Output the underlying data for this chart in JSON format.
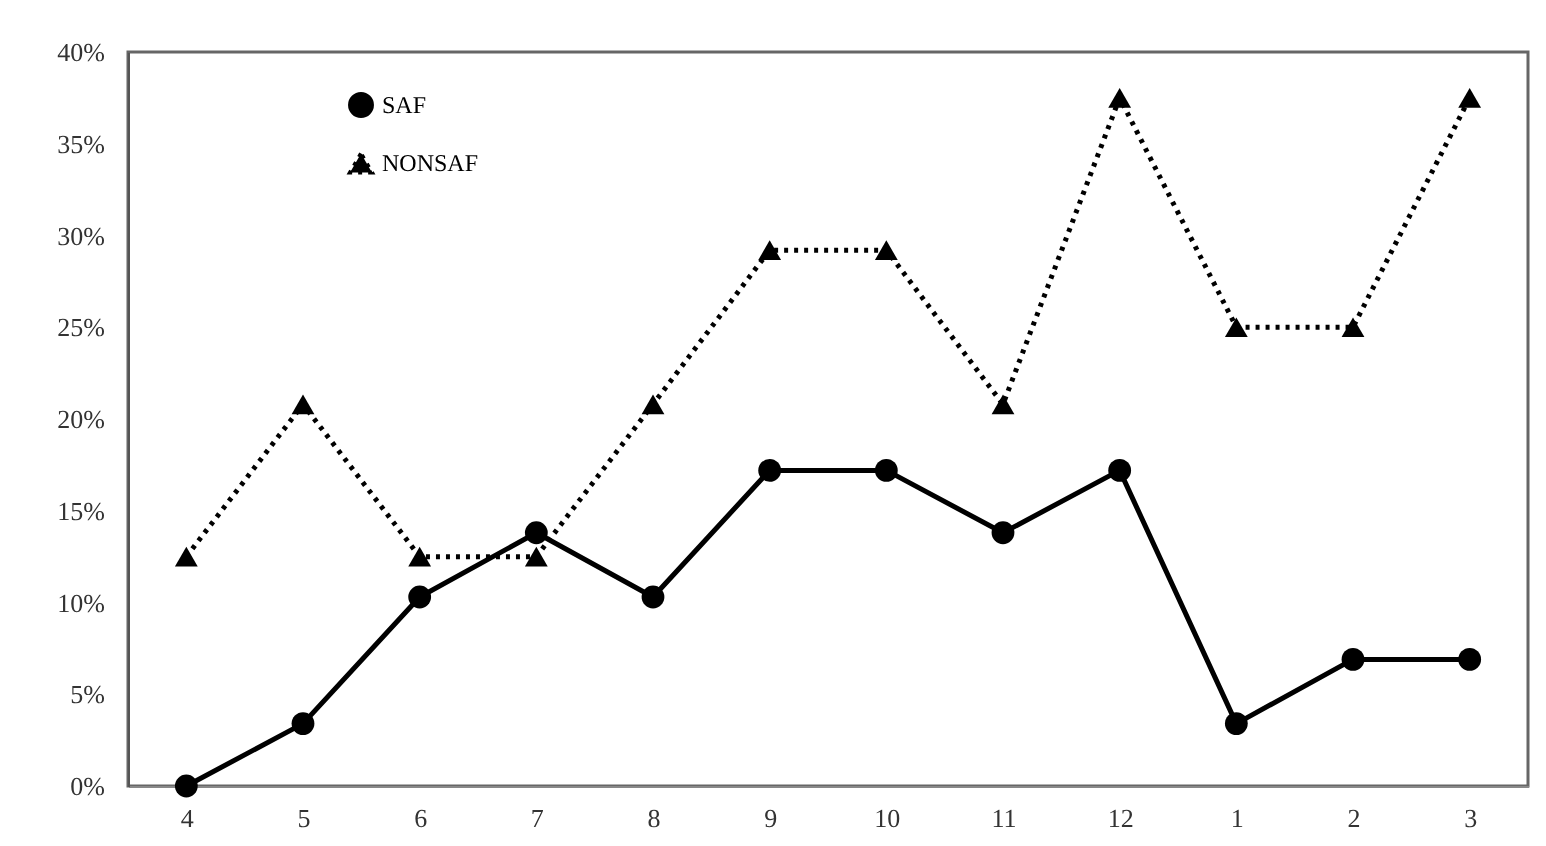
{
  "chart_data": {
    "type": "line",
    "categories": [
      "4",
      "5",
      "6",
      "7",
      "8",
      "9",
      "10",
      "11",
      "12",
      "1",
      "2",
      "3"
    ],
    "series": [
      {
        "name": "SAF",
        "color": "#000000",
        "marker": "circle",
        "line_style": "solid",
        "values": [
          0,
          3.4,
          10.3,
          13.8,
          10.3,
          17.2,
          17.2,
          13.8,
          17.2,
          3.4,
          6.9,
          6.9
        ]
      },
      {
        "name": "NONSAF",
        "color": "#000000",
        "marker": "triangle",
        "line_style": "dotted",
        "values": [
          12.5,
          20.8,
          12.5,
          12.5,
          20.8,
          29.2,
          29.2,
          20.8,
          37.5,
          25,
          25,
          37.5
        ]
      }
    ],
    "ylim": [
      0,
      40
    ],
    "yticks": [
      {
        "value": 0,
        "label": "0%"
      },
      {
        "value": 5,
        "label": "5%"
      },
      {
        "value": 10,
        "label": "10%"
      },
      {
        "value": 15,
        "label": "15%"
      },
      {
        "value": 20,
        "label": "20%"
      },
      {
        "value": 25,
        "label": "25%"
      },
      {
        "value": 30,
        "label": "30%"
      },
      {
        "value": 35,
        "label": "35%"
      },
      {
        "value": 40,
        "label": "40%"
      }
    ],
    "grid": false,
    "legend": "top left"
  }
}
